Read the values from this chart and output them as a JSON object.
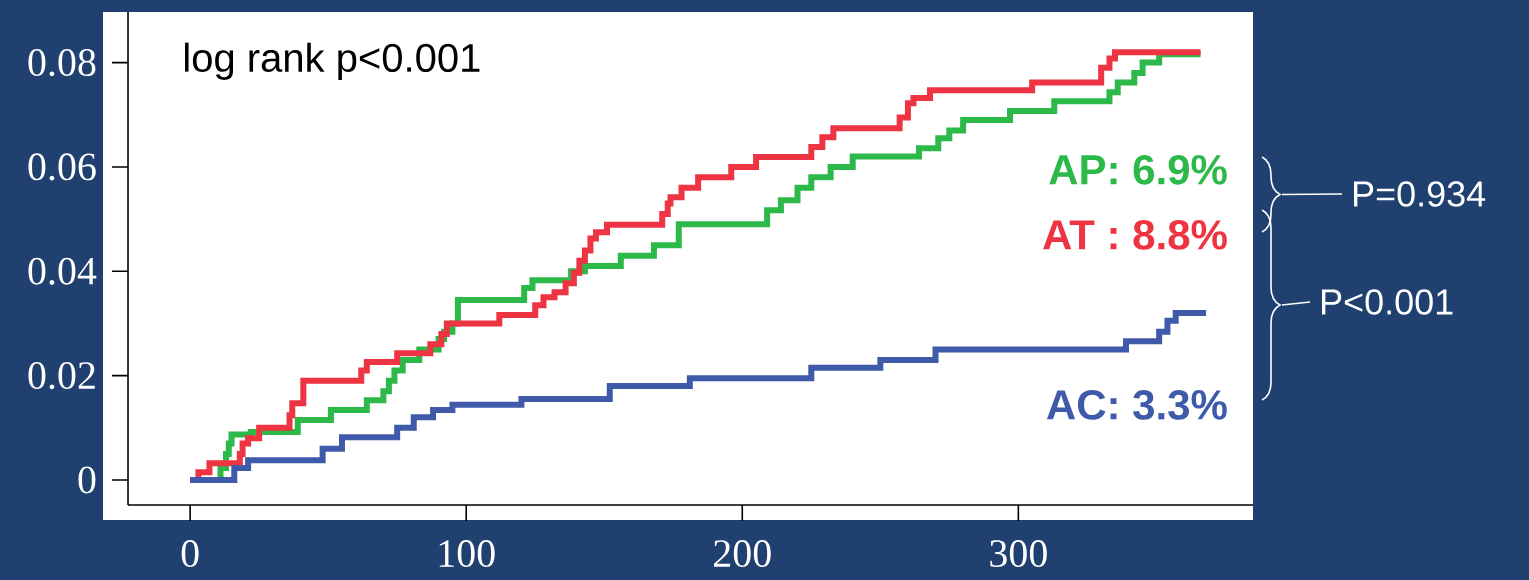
{
  "chart_data": {
    "type": "step",
    "xlim": [
      -22.5,
      385
    ],
    "ylim": [
      -0.0048,
      0.0897
    ],
    "xticks": [
      0,
      100,
      200,
      300
    ],
    "yticks": [
      0,
      0.02,
      0.04,
      0.06,
      0.08
    ],
    "annotations": [
      "log rank p<0.001",
      "P=0.934",
      "P<0.001"
    ],
    "series": [
      {
        "name": "AP: 6.9%",
        "color": "#2db84a",
        "x": [
          0,
          11,
          13,
          14,
          15,
          22,
          39,
          51,
          64,
          70,
          72,
          74,
          77,
          83,
          90,
          92,
          95,
          97,
          121,
          124,
          138,
          143,
          156,
          168,
          177,
          209,
          214,
          220,
          225,
          232,
          240,
          264,
          271,
          275,
          280,
          297,
          313,
          333,
          336,
          342,
          345,
          351,
          366
        ],
        "values": [
          0,
          0.0023,
          0.005,
          0.007,
          0.0087,
          0.0092,
          0.0115,
          0.0134,
          0.0153,
          0.017,
          0.019,
          0.021,
          0.023,
          0.025,
          0.027,
          0.0284,
          0.03,
          0.0345,
          0.0368,
          0.0383,
          0.04,
          0.041,
          0.043,
          0.045,
          0.049,
          0.0517,
          0.0536,
          0.056,
          0.058,
          0.06,
          0.062,
          0.0636,
          0.0655,
          0.067,
          0.069,
          0.0707,
          0.0726,
          0.0743,
          0.0762,
          0.078,
          0.08,
          0.0816,
          0.0816
        ]
      },
      {
        "name": "AT : 8.8%",
        "color": "#ee3342",
        "x": [
          0,
          3,
          7,
          18,
          19,
          21,
          25,
          36,
          37,
          41,
          62,
          64,
          75,
          87,
          91,
          93,
          112,
          125,
          128,
          132,
          136,
          139,
          141,
          143,
          145,
          147,
          151,
          171,
          173,
          174,
          178,
          184,
          196,
          205,
          225,
          229,
          233,
          257,
          260,
          262,
          268,
          305,
          330,
          333,
          335,
          366
        ],
        "values": [
          0,
          0.0015,
          0.0032,
          0.005,
          0.007,
          0.008,
          0.01,
          0.0124,
          0.0147,
          0.019,
          0.021,
          0.0226,
          0.0243,
          0.026,
          0.028,
          0.03,
          0.0316,
          0.0335,
          0.035,
          0.036,
          0.0377,
          0.0397,
          0.042,
          0.044,
          0.0463,
          0.0475,
          0.0489,
          0.051,
          0.053,
          0.0542,
          0.056,
          0.058,
          0.06,
          0.0619,
          0.0638,
          0.0657,
          0.0674,
          0.0695,
          0.0722,
          0.0732,
          0.0747,
          0.0762,
          0.079,
          0.0808,
          0.082,
          0.082
        ]
      },
      {
        "name": "AC: 3.3%",
        "color": "#3f5aa8",
        "x": [
          0,
          16,
          21,
          48,
          55,
          75,
          81,
          88,
          95,
          120,
          152,
          181,
          225,
          250,
          270,
          339,
          351,
          354,
          357,
          368
        ],
        "values": [
          0,
          0.0023,
          0.0038,
          0.006,
          0.0082,
          0.01,
          0.012,
          0.0134,
          0.0144,
          0.0155,
          0.018,
          0.0195,
          0.0215,
          0.023,
          0.025,
          0.0266,
          0.0284,
          0.0305,
          0.032,
          0.032
        ]
      }
    ]
  }
}
